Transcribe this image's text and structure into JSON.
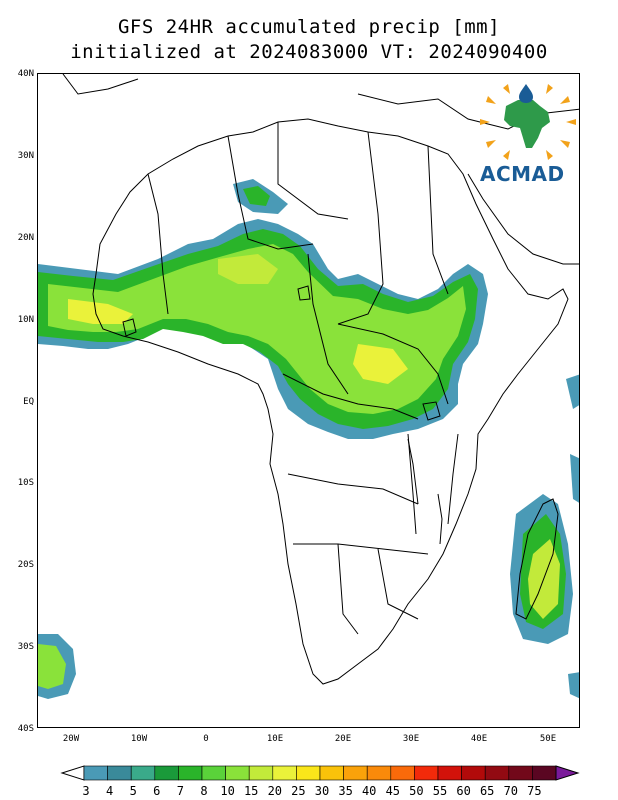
{
  "title": {
    "line1": "GFS 24HR accumulated precip [mm]",
    "line2": "initialized at 2024083000 VT: 2024090400"
  },
  "lat_labels": [
    "40N",
    "30N",
    "20N",
    "10N",
    "EQ",
    "10S",
    "20S",
    "30S",
    "40S"
  ],
  "lon_labels": [
    "20W",
    "10W",
    "0",
    "10E",
    "20E",
    "30E",
    "40E",
    "50E"
  ],
  "colorbar": {
    "labels": [
      "3",
      "4",
      "5",
      "6",
      "7",
      "8",
      "10",
      "15",
      "20",
      "25",
      "30",
      "35",
      "40",
      "45",
      "50",
      "55",
      "60",
      "65",
      "70",
      "75"
    ],
    "colors": [
      "#4a9ab6",
      "#3a8a9a",
      "#3aaa8a",
      "#1a9a3a",
      "#2ab42a",
      "#5ad23a",
      "#8ae23a",
      "#c2ea3a",
      "#eaf23a",
      "#fae61a",
      "#fac20a",
      "#faa20a",
      "#fa8a0a",
      "#fa6a0a",
      "#f22a0a",
      "#d2120a",
      "#b20a0a",
      "#920a12",
      "#72081a",
      "#5a0622"
    ],
    "under_color": "#ffffff",
    "over_color": "#7a1a9a"
  },
  "logo": {
    "text": "ACMAD",
    "colors": {
      "continent": "#2e9a4a",
      "rays": "#f2a21a",
      "drop": "#1a5c96",
      "text": "#1a5c96"
    }
  },
  "icons": [
    "acmad-logo",
    "water-drop-icon",
    "sun-rays-icon"
  ]
}
